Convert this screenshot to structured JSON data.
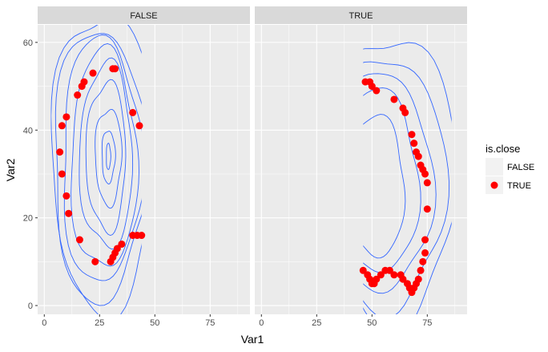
{
  "chart_data": {
    "type": "scatter",
    "subtype": "faceted scatter with 2D density contours",
    "xlabel": "Var1",
    "ylabel": "Var2",
    "xlim": [
      -3,
      93
    ],
    "ylim": [
      -2,
      64
    ],
    "xticks": [
      0,
      25,
      50,
      75
    ],
    "yticks": [
      0,
      20,
      40,
      60
    ],
    "grid": true,
    "colors": {
      "point": "#FF0000",
      "contour": "#3366FF",
      "panel": "#EBEBEB",
      "strip": "#D9D9D9"
    },
    "legend": {
      "title": "is.close",
      "position": "right",
      "entries": [
        {
          "label": "FALSE",
          "shown": false
        },
        {
          "label": "TRUE",
          "color": "#FF0000"
        }
      ]
    },
    "facets": [
      {
        "label": "FALSE",
        "contour_center": [
          27,
          34
        ],
        "contour_clip": [
          3,
          44
        ],
        "contours": [
          [
            24,
            34,
            27,
            33
          ],
          [
            21,
            31,
            25,
            32
          ],
          [
            18,
            28,
            26,
            33
          ],
          [
            15,
            25,
            27,
            33
          ],
          [
            12,
            21,
            28,
            34
          ],
          [
            9,
            17,
            28,
            34
          ],
          [
            6,
            11,
            29,
            34
          ],
          [
            3,
            6,
            29,
            34
          ],
          [
            1,
            3,
            29,
            34
          ]
        ],
        "points": [
          [
            7,
            35
          ],
          [
            8,
            41
          ],
          [
            10,
            43
          ],
          [
            8,
            30
          ],
          [
            10,
            25
          ],
          [
            11,
            21
          ],
          [
            15,
            48
          ],
          [
            17,
            50
          ],
          [
            18,
            51
          ],
          [
            22,
            53
          ],
          [
            31,
            54
          ],
          [
            32,
            54
          ],
          [
            40,
            44
          ],
          [
            43,
            41
          ],
          [
            16,
            15
          ],
          [
            23,
            10
          ],
          [
            30,
            10
          ],
          [
            31,
            11
          ],
          [
            32,
            12
          ],
          [
            33,
            13
          ],
          [
            35,
            14
          ],
          [
            40,
            16
          ],
          [
            42,
            16
          ],
          [
            44,
            16
          ]
        ]
      },
      {
        "label": "TRUE",
        "contour_center": [
          58,
          28
        ],
        "contour_clip": [
          46,
          86
        ],
        "contours": [
          [
            30,
            33,
            58,
            29
          ],
          [
            26,
            29,
            57,
            28
          ],
          [
            22,
            25,
            55,
            28
          ],
          [
            18,
            21,
            53,
            28
          ],
          [
            14,
            16,
            51,
            27
          ]
        ],
        "points": [
          [
            47,
            51
          ],
          [
            49,
            51
          ],
          [
            50,
            50
          ],
          [
            52,
            49
          ],
          [
            60,
            47
          ],
          [
            64,
            45
          ],
          [
            65,
            44
          ],
          [
            68,
            39
          ],
          [
            69,
            37
          ],
          [
            70,
            35
          ],
          [
            71,
            34
          ],
          [
            72,
            32
          ],
          [
            73,
            31
          ],
          [
            74,
            30
          ],
          [
            75,
            28
          ],
          [
            75,
            22
          ],
          [
            74,
            15
          ],
          [
            74,
            12
          ],
          [
            73,
            10
          ],
          [
            72,
            8
          ],
          [
            71,
            6
          ],
          [
            70,
            5
          ],
          [
            69,
            4
          ],
          [
            68,
            3
          ],
          [
            67,
            4
          ],
          [
            66,
            5
          ],
          [
            64,
            6
          ],
          [
            63,
            7
          ],
          [
            60,
            7
          ],
          [
            58,
            8
          ],
          [
            56,
            8
          ],
          [
            54,
            7
          ],
          [
            52,
            6
          ],
          [
            51,
            5
          ],
          [
            50,
            5
          ],
          [
            49,
            6
          ],
          [
            48,
            7
          ],
          [
            46,
            8
          ]
        ]
      }
    ]
  }
}
